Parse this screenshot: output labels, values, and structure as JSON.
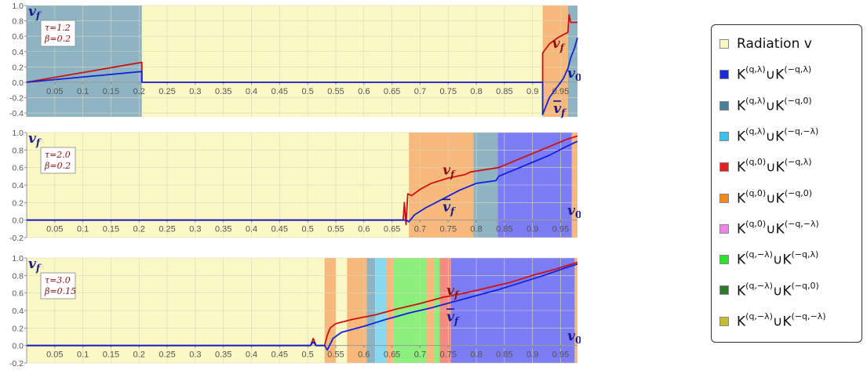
{
  "chart_data": [
    {
      "type": "line",
      "annotation": [
        "τ=1.2",
        "β=0.2"
      ],
      "ylabel": "v_f",
      "xlim": [
        0,
        0.98
      ],
      "ylim": [
        -0.45,
        1.0
      ],
      "yticks": [
        "1.0",
        "0.8",
        "0.6",
        "0.4",
        "0.2",
        "0.0",
        "-0.2",
        "-0.4"
      ],
      "xticks": [
        "0.05",
        "0.1",
        "0.15",
        "0.2",
        "0.25",
        "0.3",
        "0.35",
        "0.4",
        "0.45",
        "0.5",
        "0.55",
        "0.6",
        "0.65",
        "0.7",
        "0.75",
        "0.8",
        "0.85",
        "0.9",
        "0.95"
      ],
      "regions": [
        {
          "from": 0.0,
          "to": 0.205,
          "class": "K(q,λ)∪K(-q,0)"
        },
        {
          "from": 0.205,
          "to": 0.918,
          "class": "Radiation v"
        },
        {
          "from": 0.918,
          "to": 0.963,
          "class": "K(q,0)∪K(-q,0)"
        },
        {
          "from": 0.963,
          "to": 0.98,
          "class": "K(q,λ)∪K(-q,0)"
        }
      ],
      "series": [
        {
          "name": "v_f",
          "color": "#cc1111",
          "points": [
            [
              0,
              0
            ],
            [
              0.205,
              0.26
            ],
            [
              0.205,
              0
            ],
            [
              0.918,
              0
            ],
            [
              0.918,
              0.38
            ],
            [
              0.93,
              0.5
            ],
            [
              0.945,
              0.58
            ],
            [
              0.955,
              0.62
            ],
            [
              0.963,
              0.65
            ],
            [
              0.965,
              0.88
            ],
            [
              0.968,
              0.78
            ],
            [
              0.98,
              0.78
            ]
          ]
        },
        {
          "name": "v̄_f",
          "color": "#1122dd",
          "points": [
            [
              0,
              0
            ],
            [
              0.205,
              0.14
            ],
            [
              0.205,
              0
            ],
            [
              0.918,
              0
            ],
            [
              0.918,
              -0.42
            ],
            [
              0.93,
              -0.2
            ],
            [
              0.945,
              -0.05
            ],
            [
              0.955,
              0.05
            ],
            [
              0.963,
              0.18
            ],
            [
              0.968,
              0.32
            ],
            [
              0.975,
              0.45
            ],
            [
              0.98,
              0.58
            ]
          ]
        }
      ],
      "curve_labels": [
        {
          "text": "v_f",
          "x": 0.935,
          "y": 0.45,
          "color": "#8b1111"
        },
        {
          "text": "v0",
          "x": 0.962,
          "y": 0.06,
          "color": "#1a1a8c"
        },
        {
          "text": "v̄_f",
          "x": 0.937,
          "y": -0.4,
          "color": "#1a1a8c"
        }
      ]
    },
    {
      "type": "line",
      "annotation": [
        "τ=2.0",
        "β=0.2"
      ],
      "ylabel": "v_f",
      "xlim": [
        0,
        0.98
      ],
      "ylim": [
        -0.2,
        1.0
      ],
      "yticks": [
        "1.0",
        "0.8",
        "0.6",
        "0.4",
        "0.2",
        "0.0",
        "-0.2"
      ],
      "xticks": [
        "0.05",
        "0.1",
        "0.15",
        "0.2",
        "0.25",
        "0.3",
        "0.35",
        "0.4",
        "0.45",
        "0.5",
        "0.55",
        "0.6",
        "0.65",
        "0.7",
        "0.75",
        "0.8",
        "0.85",
        "0.9",
        "0.95"
      ],
      "regions": [
        {
          "from": 0.0,
          "to": 0.68,
          "class": "Radiation v"
        },
        {
          "from": 0.68,
          "to": 0.795,
          "class": "K(q,0)∪K(-q,0)"
        },
        {
          "from": 0.795,
          "to": 0.838,
          "class": "K(q,λ)∪K(-q,0)"
        },
        {
          "from": 0.838,
          "to": 0.97,
          "class": "K(q,λ)∪K(-q,λ)"
        },
        {
          "from": 0.97,
          "to": 0.98,
          "class": "K(q,0)∪K(-q,0)"
        }
      ],
      "series": [
        {
          "name": "v_f",
          "color": "#cc1111",
          "points": [
            [
              0,
              0
            ],
            [
              0.67,
              0
            ],
            [
              0.672,
              0.2
            ],
            [
              0.675,
              -0.05
            ],
            [
              0.678,
              0.3
            ],
            [
              0.685,
              0.28
            ],
            [
              0.7,
              0.35
            ],
            [
              0.72,
              0.42
            ],
            [
              0.75,
              0.48
            ],
            [
              0.78,
              0.52
            ],
            [
              0.79,
              0.55
            ],
            [
              0.8,
              0.56
            ],
            [
              0.84,
              0.6
            ],
            [
              0.87,
              0.68
            ],
            [
              0.9,
              0.76
            ],
            [
              0.93,
              0.84
            ],
            [
              0.96,
              0.92
            ],
            [
              0.97,
              0.94
            ],
            [
              0.98,
              0.96
            ]
          ]
        },
        {
          "name": "v̄_f",
          "color": "#1122dd",
          "points": [
            [
              0,
              0
            ],
            [
              0.675,
              0
            ],
            [
              0.68,
              -0.02
            ],
            [
              0.69,
              0.06
            ],
            [
              0.71,
              0.14
            ],
            [
              0.74,
              0.24
            ],
            [
              0.77,
              0.34
            ],
            [
              0.8,
              0.42
            ],
            [
              0.835,
              0.45
            ],
            [
              0.84,
              0.5
            ],
            [
              0.87,
              0.58
            ],
            [
              0.9,
              0.66
            ],
            [
              0.93,
              0.74
            ],
            [
              0.96,
              0.84
            ],
            [
              0.98,
              0.9
            ]
          ]
        }
      ],
      "curve_labels": [
        {
          "text": "v_f",
          "x": 0.74,
          "y": 0.52,
          "color": "#8b1111"
        },
        {
          "text": "v̄_f",
          "x": 0.74,
          "y": 0.1,
          "color": "#1a1a8c"
        },
        {
          "text": "v0",
          "x": 0.962,
          "y": 0.06,
          "color": "#1a1a8c"
        }
      ]
    },
    {
      "type": "line",
      "annotation": [
        "τ=3.0",
        "β=0.15"
      ],
      "ylabel": "v_f",
      "xlim": [
        0,
        0.98
      ],
      "ylim": [
        -0.2,
        1.0
      ],
      "yticks": [
        "1.0",
        "0.8",
        "0.6",
        "0.4",
        "0.2",
        "0.0",
        "-0.2"
      ],
      "xticks": [
        "0.05",
        "0.1",
        "0.15",
        "0.2",
        "0.25",
        "0.3",
        "0.35",
        "0.4",
        "0.45",
        "0.5",
        "0.55",
        "0.6",
        "0.65",
        "0.7",
        "0.75",
        "0.8",
        "0.85",
        "0.9",
        "0.95"
      ],
      "regions": [
        {
          "from": 0.0,
          "to": 0.53,
          "class": "Radiation v"
        },
        {
          "from": 0.53,
          "to": 0.55,
          "class": "K(q,0)∪K(-q,0)"
        },
        {
          "from": 0.55,
          "to": 0.57,
          "class": "Radiation v"
        },
        {
          "from": 0.57,
          "to": 0.605,
          "class": "K(q,0)∪K(-q,0)"
        },
        {
          "from": 0.605,
          "to": 0.62,
          "class": "K(q,λ)∪K(-q,0)"
        },
        {
          "from": 0.62,
          "to": 0.64,
          "class": "K(q,λ)∪K(-q,-λ)"
        },
        {
          "from": 0.64,
          "to": 0.652,
          "class": "K(q,0)∪K(-q,0)"
        },
        {
          "from": 0.652,
          "to": 0.712,
          "class": "K(q,-λ)∪K(-q,λ)"
        },
        {
          "from": 0.712,
          "to": 0.725,
          "class": "K(q,0)∪K(-q,0)"
        },
        {
          "from": 0.725,
          "to": 0.735,
          "class": "K(q,-λ)∪K(-q,λ)"
        },
        {
          "from": 0.735,
          "to": 0.755,
          "class": "K(q,0)∪K(-q,λ)"
        },
        {
          "from": 0.755,
          "to": 0.975,
          "class": "K(q,λ)∪K(-q,λ)"
        },
        {
          "from": 0.975,
          "to": 0.98,
          "class": "K(q,0)∪K(-q,0)"
        }
      ],
      "series": [
        {
          "name": "v_f",
          "color": "#cc1111",
          "points": [
            [
              0,
              0
            ],
            [
              0.505,
              0
            ],
            [
              0.51,
              0.08
            ],
            [
              0.515,
              0
            ],
            [
              0.53,
              0
            ],
            [
              0.535,
              0.12
            ],
            [
              0.54,
              0.2
            ],
            [
              0.55,
              0.25
            ],
            [
              0.58,
              0.3
            ],
            [
              0.62,
              0.35
            ],
            [
              0.66,
              0.42
            ],
            [
              0.7,
              0.48
            ],
            [
              0.74,
              0.55
            ],
            [
              0.78,
              0.6
            ],
            [
              0.82,
              0.66
            ],
            [
              0.86,
              0.72
            ],
            [
              0.9,
              0.8
            ],
            [
              0.94,
              0.87
            ],
            [
              0.98,
              0.95
            ]
          ]
        },
        {
          "name": "v̄_f",
          "color": "#1122dd",
          "points": [
            [
              0,
              0
            ],
            [
              0.505,
              0
            ],
            [
              0.51,
              0.04
            ],
            [
              0.515,
              0
            ],
            [
              0.53,
              0
            ],
            [
              0.535,
              -0.05
            ],
            [
              0.545,
              0.08
            ],
            [
              0.56,
              0.15
            ],
            [
              0.6,
              0.22
            ],
            [
              0.64,
              0.3
            ],
            [
              0.68,
              0.37
            ],
            [
              0.72,
              0.43
            ],
            [
              0.76,
              0.5
            ],
            [
              0.8,
              0.57
            ],
            [
              0.84,
              0.64
            ],
            [
              0.88,
              0.72
            ],
            [
              0.92,
              0.8
            ],
            [
              0.96,
              0.89
            ],
            [
              0.98,
              0.93
            ]
          ]
        }
      ],
      "curve_labels": [
        {
          "text": "v_f",
          "x": 0.747,
          "y": 0.58,
          "color": "#8b1111"
        },
        {
          "text": "v̄_f",
          "x": 0.747,
          "y": 0.28,
          "color": "#1a1a8c"
        },
        {
          "text": "v0",
          "x": 0.962,
          "y": 0.06,
          "color": "#1a1a8c"
        }
      ]
    }
  ],
  "region_colors": {
    "Radiation v": "#fbf8c6",
    "K(q,λ)∪K(-q,λ)": "#7c7cf5",
    "K(q,λ)∪K(-q,0)": "#8eb4c4",
    "K(q,λ)∪K(-q,-λ)": "#87d9f1",
    "K(q,0)∪K(-q,λ)": "#f58a7e",
    "K(q,0)∪K(-q,0)": "#f7b87c",
    "K(q,0)∪K(-q,-λ)": "#f2a8e4",
    "K(q,-λ)∪K(-q,λ)": "#8cef7c",
    "K(q,-λ)∪K(-q,0)": "#5a9b56",
    "K(q,-λ)∪K(-q,-λ)": "#cdc256"
  },
  "legend": [
    {
      "label": "Radiation v",
      "color": "#fbf8c6"
    },
    {
      "label": "K(q,λ)∪K(-q,λ)",
      "a": "(q,λ)",
      "b": "(−q,λ)",
      "color": "#1a2adc"
    },
    {
      "label": "K(q,λ)∪K(-q,0)",
      "a": "(q,λ)",
      "b": "(−q,0)",
      "color": "#44839b"
    },
    {
      "label": "K(q,λ)∪K(-q,-λ)",
      "a": "(q,λ)",
      "b": "(−q,−λ)",
      "color": "#33c5ee"
    },
    {
      "label": "K(q,0)∪K(-q,λ)",
      "a": "(q,0)",
      "b": "(−q,λ)",
      "color": "#e61e1e"
    },
    {
      "label": "K(q,0)∪K(-q,0)",
      "a": "(q,0)",
      "b": "(−q,0)",
      "color": "#f3881d"
    },
    {
      "label": "K(q,0)∪K(-q,-λ)",
      "a": "(q,0)",
      "b": "(−q,−λ)",
      "color": "#ee84e6"
    },
    {
      "label": "K(q,-λ)∪K(-q,λ)",
      "a": "(q,−λ)",
      "b": "(−q,λ)",
      "color": "#2ae42a"
    },
    {
      "label": "K(q,-λ)∪K(-q,0)",
      "a": "(q,−λ)",
      "b": "(−q,0)",
      "color": "#2a7a2a"
    },
    {
      "label": "K(q,-λ)∪K(-q,-λ)",
      "a": "(q,−λ)",
      "b": "(−q,−λ)",
      "color": "#c9bc2a"
    }
  ]
}
